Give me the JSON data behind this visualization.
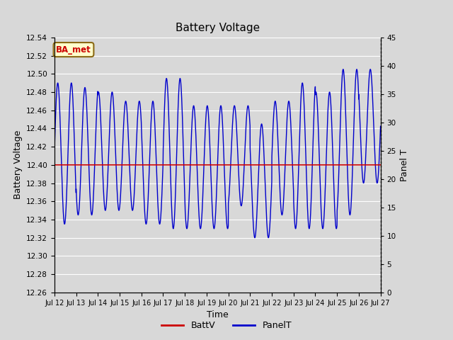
{
  "title": "Battery Voltage",
  "xlabel": "Time",
  "ylabel_left": "Battery Voltage",
  "ylabel_right": "Panel T",
  "ylim_left": [
    12.26,
    12.54
  ],
  "ylim_right": [
    0,
    45
  ],
  "yticks_left": [
    12.26,
    12.28,
    12.3,
    12.32,
    12.34,
    12.36,
    12.38,
    12.4,
    12.42,
    12.44,
    12.46,
    12.48,
    12.5,
    12.52,
    12.54
  ],
  "yticks_right": [
    0,
    5,
    10,
    15,
    20,
    25,
    30,
    35,
    40,
    45
  ],
  "batt_v": 12.4,
  "bg_color": "#d8d8d8",
  "plot_bg_color": "#d8d8d8",
  "annotation_text": "BA_met",
  "annotation_bg": "#ffffcc",
  "annotation_border": "#8B6914",
  "annotation_text_color": "#cc0000",
  "legend_labels": [
    "BattV",
    "PanelT"
  ],
  "batt_color": "#cc0000",
  "panel_color": "#0000cc",
  "xtick_labels": [
    "Jul 12",
    "Jul 13",
    "Jul 14",
    "Jul 15",
    "Jul 16",
    "Jul 17",
    "Jul 18",
    "Jul 19",
    "Jul 20",
    "Jul 21",
    "Jul 22",
    "Jul 23",
    "Jul 24",
    "Jul 25",
    "Jul 26",
    "Jul 27"
  ],
  "num_days": 15,
  "cycles_per_day": 1.6,
  "panel_peaks_v": [
    12.49,
    12.485,
    12.48,
    12.47,
    12.47,
    12.495,
    12.465,
    12.465,
    12.465,
    12.445,
    12.47,
    12.49,
    12.48,
    12.505,
    12.505
  ],
  "panel_troughs_v": [
    12.335,
    12.345,
    12.35,
    12.35,
    12.335,
    12.33,
    12.33,
    12.33,
    12.355,
    12.32,
    12.345,
    12.33,
    12.33,
    12.345,
    12.38
  ],
  "figsize": [
    6.4,
    4.8
  ],
  "dpi": 100
}
